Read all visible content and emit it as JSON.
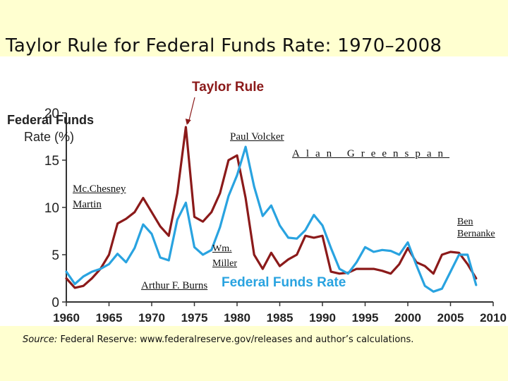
{
  "slide": {
    "title": "Taylor Rule for Federal Funds Rate: 1970–2008",
    "source_prefix": "Source:",
    "source_text": "Federal Reserve: www.federalreserve.gov/releases and author’s calculations."
  },
  "annotations": {
    "volcker": "Paul Volcker",
    "greenspan": "Alan Greenspan",
    "martin_line1": "Mc.Chesney",
    "martin_line2": "Martin",
    "bernanke_line1": "Ben",
    "bernanke_line2": "Bernanke",
    "miller_line1": "Wm.",
    "miller_line2": "Miller",
    "burns": "Arthur F. Burns"
  },
  "colors": {
    "taylor": "#8b1a1a",
    "fedfunds": "#29a3e0",
    "axis": "#333333",
    "background": "#ffffd0"
  },
  "chart_data": {
    "type": "line",
    "title": "",
    "xlabel": "",
    "ylabel_line1": "Federal Funds",
    "ylabel_line2": "Rate (%)",
    "xlim": [
      1960,
      2010
    ],
    "ylim": [
      0,
      20
    ],
    "xticks": [
      1960,
      1965,
      1970,
      1975,
      1980,
      1985,
      1990,
      1995,
      2000,
      2005,
      2010
    ],
    "yticks": [
      0,
      5,
      10,
      15,
      20
    ],
    "arrow_target": {
      "x": 1974.2,
      "y": 18.5
    },
    "series": [
      {
        "name": "Taylor Rule",
        "color": "#8b1a1a",
        "x": [
          1960,
          1961,
          1962,
          1963,
          1964,
          1965,
          1966,
          1967,
          1968,
          1969,
          1970,
          1971,
          1972,
          1973,
          1974,
          1975,
          1976,
          1977,
          1978,
          1979,
          1980,
          1981,
          1982,
          1983,
          1984,
          1985,
          1986,
          1987,
          1988,
          1989,
          1990,
          1991,
          1992,
          1993,
          1994,
          1995,
          1996,
          1997,
          1998,
          1999,
          2000,
          2001,
          2002,
          2003,
          2004,
          2005,
          2006,
          2007,
          2008
        ],
        "y": [
          2.5,
          1.5,
          1.7,
          2.5,
          3.5,
          5.0,
          8.3,
          8.8,
          9.5,
          11.0,
          9.5,
          8.0,
          7.0,
          11.5,
          18.5,
          9.0,
          8.5,
          9.5,
          11.5,
          15.0,
          15.5,
          11.0,
          5.0,
          3.5,
          5.2,
          3.8,
          4.5,
          5.0,
          7.0,
          6.8,
          7.0,
          3.2,
          3.0,
          3.1,
          3.5,
          3.5,
          3.5,
          3.3,
          3.0,
          4.0,
          5.7,
          4.2,
          3.8,
          3.0,
          5.0,
          5.3,
          5.2,
          4.0,
          2.5
        ]
      },
      {
        "name": "Federal Funds Rate",
        "color": "#29a3e0",
        "x": [
          1960,
          1961,
          1962,
          1963,
          1964,
          1965,
          1966,
          1967,
          1968,
          1969,
          1970,
          1971,
          1972,
          1973,
          1974,
          1975,
          1976,
          1977,
          1978,
          1979,
          1980,
          1981,
          1982,
          1983,
          1984,
          1985,
          1986,
          1987,
          1988,
          1989,
          1990,
          1991,
          1992,
          1993,
          1994,
          1995,
          1996,
          1997,
          1998,
          1999,
          2000,
          2001,
          2002,
          2003,
          2004,
          2005,
          2006,
          2007,
          2008
        ],
        "y": [
          3.2,
          1.9,
          2.7,
          3.2,
          3.5,
          4.0,
          5.1,
          4.2,
          5.7,
          8.2,
          7.2,
          4.7,
          4.4,
          8.7,
          10.5,
          5.8,
          5.0,
          5.5,
          7.9,
          11.2,
          13.4,
          16.4,
          12.2,
          9.1,
          10.2,
          8.1,
          6.8,
          6.7,
          7.6,
          9.2,
          8.1,
          5.7,
          3.5,
          3.0,
          4.2,
          5.8,
          5.3,
          5.5,
          5.4,
          5.0,
          6.3,
          3.9,
          1.7,
          1.1,
          1.4,
          3.2,
          5.0,
          5.0,
          1.8
        ]
      }
    ]
  }
}
